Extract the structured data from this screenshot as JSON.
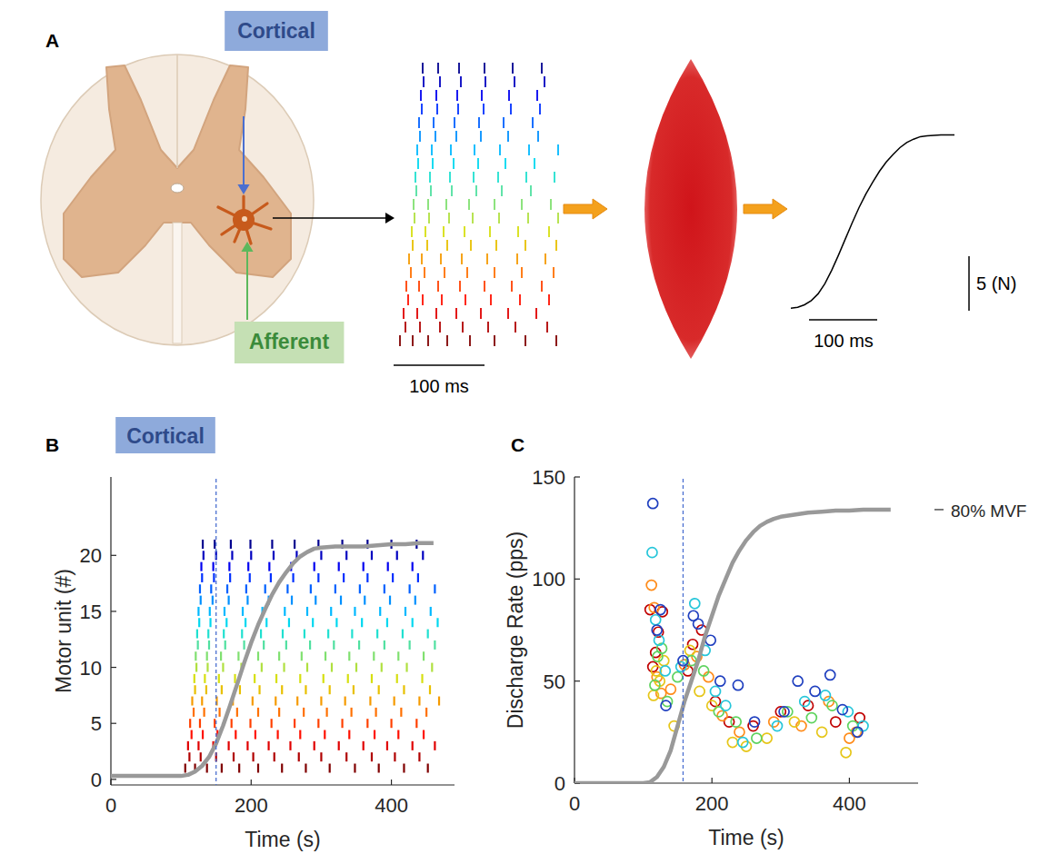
{
  "diagram": {
    "panel": "A",
    "cortical_label": "Cortical",
    "afferent_label": "Afferent",
    "raster_scale": "100 ms",
    "force_scale_y": "5 (N)",
    "force_scale_x": "100 ms"
  },
  "chart_data": [
    {
      "type": "raster",
      "panel": "B",
      "annotation": "Cortical",
      "x_label": "Time (s)",
      "y_label": "Motor unit (#)",
      "xlim": [
        0,
        490
      ],
      "ylim": [
        -0.5,
        27
      ],
      "xticks": [
        0,
        200,
        400
      ],
      "yticks": [
        0,
        5,
        10,
        15,
        20
      ],
      "vline": 150,
      "series": [
        {
          "unit": 1,
          "color": "#800000",
          "x": [
            106,
            120,
            137,
            158,
            183,
            210,
            244,
            278,
            312,
            348,
            382,
            418,
            452
          ]
        },
        {
          "unit": 2,
          "color": "#b00000",
          "x": [
            112,
            128,
            150,
            175,
            203,
            233,
            268,
            300,
            336,
            372,
            405,
            440
          ]
        },
        {
          "unit": 3,
          "color": "#e00000",
          "x": [
            110,
            125,
            146,
            168,
            195,
            225,
            256,
            290,
            325,
            360,
            394,
            430,
            462
          ]
        },
        {
          "unit": 4,
          "color": "#ff1000",
          "x": [
            115,
            131,
            152,
            178,
            206,
            238,
            270,
            305,
            340,
            376,
            410,
            446
          ]
        },
        {
          "unit": 5,
          "color": "#ff4000",
          "x": [
            113,
            127,
            148,
            172,
            199,
            229,
            262,
            296,
            330,
            366,
            400,
            436
          ]
        },
        {
          "unit": 6,
          "color": "#ff7000",
          "x": [
            118,
            133,
            155,
            180,
            210,
            240,
            275,
            308,
            343,
            378,
            414,
            450
          ]
        },
        {
          "unit": 7,
          "color": "#f59a00",
          "x": [
            116,
            130,
            151,
            174,
            202,
            235,
            266,
            300,
            334,
            370,
            404,
            440,
            468
          ]
        },
        {
          "unit": 8,
          "color": "#e8c000",
          "x": [
            120,
            136,
            158,
            184,
            212,
            244,
            278,
            312,
            346,
            382,
            418,
            455
          ]
        },
        {
          "unit": 9,
          "color": "#d6df10",
          "x": [
            119,
            134,
            154,
            177,
            205,
            236,
            270,
            303,
            338,
            372,
            408,
            444
          ]
        },
        {
          "unit": 10,
          "color": "#b0e040",
          "x": [
            122,
            138,
            160,
            186,
            215,
            247,
            280,
            315,
            350,
            386,
            422,
            458
          ]
        },
        {
          "unit": 11,
          "color": "#80e070",
          "x": [
            121,
            137,
            157,
            182,
            210,
            240,
            272,
            306,
            340,
            375,
            410,
            446
          ]
        },
        {
          "unit": 12,
          "color": "#50e0a0",
          "x": [
            124,
            140,
            163,
            190,
            218,
            250,
            284,
            318,
            354,
            390,
            426,
            462
          ]
        },
        {
          "unit": 13,
          "color": "#20e0d0",
          "x": [
            123,
            139,
            161,
            187,
            214,
            245,
            276,
            310,
            344,
            380,
            416,
            452
          ]
        },
        {
          "unit": 14,
          "color": "#00d8f0",
          "x": [
            126,
            142,
            165,
            192,
            222,
            254,
            288,
            322,
            358,
            394,
            430,
            466
          ]
        },
        {
          "unit": 15,
          "color": "#00b8ff",
          "x": [
            125,
            141,
            162,
            188,
            216,
            248,
            280,
            314,
            348,
            384,
            420,
            456
          ]
        },
        {
          "unit": 16,
          "color": "#0090ff",
          "x": [
            128,
            145,
            168,
            195,
            225,
            258,
            292,
            328,
            362,
            398,
            434
          ]
        },
        {
          "unit": 17,
          "color": "#0060ff",
          "x": [
            127,
            143,
            166,
            193,
            220,
            252,
            285,
            320,
            355,
            390,
            426,
            462
          ]
        },
        {
          "unit": 18,
          "color": "#0030ff",
          "x": [
            130,
            147,
            170,
            198,
            228,
            260,
            296,
            332,
            366,
            402,
            438
          ]
        },
        {
          "unit": 19,
          "color": "#0000f0",
          "x": [
            129,
            146,
            169,
            196,
            226,
            257,
            290,
            325,
            360,
            395,
            430
          ]
        },
        {
          "unit": 20,
          "color": "#0000c0",
          "x": [
            132,
            150,
            173,
            200,
            232,
            265,
            300,
            336,
            372,
            408,
            445
          ]
        },
        {
          "unit": 21,
          "color": "#000090",
          "x": [
            131,
            148,
            171,
            199,
            230,
            262,
            296,
            330,
            366,
            400,
            436
          ]
        },
        {
          "type": "line",
          "color": "#999999",
          "x": [
            0,
            100,
            110,
            120,
            130,
            140,
            150,
            160,
            170,
            180,
            190,
            200,
            210,
            220,
            230,
            240,
            250,
            260,
            270,
            280,
            290,
            300,
            320,
            340,
            360,
            380,
            400,
            420,
            440,
            460
          ],
          "values": [
            0.3,
            0.3,
            0.4,
            0.7,
            1.2,
            2,
            3.2,
            4.8,
            6.6,
            8.5,
            10.4,
            12.2,
            13.8,
            15.2,
            16.5,
            17.6,
            18.5,
            19.3,
            19.9,
            20.3,
            20.6,
            20.7,
            20.8,
            20.8,
            20.8,
            20.9,
            21,
            21,
            21.1,
            21.1
          ]
        }
      ]
    },
    {
      "type": "scatter",
      "panel": "C",
      "marker": "circle",
      "annotation": "80% MVF",
      "annotation_y": 134,
      "x_label": "Time (s)",
      "y_label": "Discharge Rate (pps)",
      "xlim": [
        0,
        500
      ],
      "ylim": [
        0,
        150
      ],
      "xticks": [
        0,
        200,
        400
      ],
      "yticks": [
        0,
        50,
        100,
        150
      ],
      "vline": 158,
      "series": [
        {
          "color": "#c00000",
          "x": [
            110,
            114,
            118,
            122,
            128,
            165,
            172,
            185,
            205,
            225,
            260,
            300,
            340,
            380,
            415
          ],
          "values": [
            85,
            57,
            64,
            74,
            84,
            55,
            68,
            75,
            40,
            30,
            28,
            35,
            38,
            30,
            32
          ]
        },
        {
          "color": "#ff8c1a",
          "x": [
            112,
            116,
            120,
            126,
            140,
            160,
            178,
            195,
            215,
            240,
            290,
            330,
            370,
            400,
            410
          ],
          "values": [
            97,
            86,
            52,
            44,
            46,
            58,
            62,
            52,
            33,
            25,
            30,
            28,
            40,
            22,
            25
          ]
        },
        {
          "color": "#e6c619",
          "x": [
            115,
            119,
            124,
            130,
            145,
            168,
            182,
            200,
            230,
            250,
            280,
            320,
            360,
            395
          ],
          "values": [
            43,
            55,
            50,
            60,
            28,
            65,
            45,
            38,
            20,
            18,
            22,
            30,
            25,
            15
          ]
        },
        {
          "color": "#5fd35f",
          "x": [
            117,
            121,
            127,
            135,
            150,
            170,
            188,
            210,
            235,
            265,
            310,
            345,
            375,
            405
          ],
          "values": [
            48,
            62,
            66,
            40,
            52,
            60,
            55,
            35,
            30,
            22,
            35,
            32,
            38,
            28
          ]
        },
        {
          "color": "#26c6da",
          "x": [
            113,
            118,
            123,
            132,
            155,
            175,
            190,
            205,
            220,
            245,
            295,
            335,
            365,
            398,
            420
          ],
          "values": [
            113,
            80,
            70,
            55,
            57,
            88,
            65,
            45,
            38,
            20,
            28,
            40,
            43,
            35,
            28
          ]
        },
        {
          "color": "#1f3fbf",
          "x": [
            114,
            120,
            125,
            133,
            158,
            173,
            180,
            198,
            212,
            238,
            262,
            305,
            325,
            350,
            372,
            390,
            412
          ],
          "values": [
            137,
            75,
            85,
            38,
            60,
            82,
            78,
            70,
            50,
            48,
            30,
            35,
            50,
            45,
            53,
            36,
            25
          ]
        },
        {
          "type": "line",
          "color": "#999999",
          "x": [
            0,
            100,
            110,
            120,
            130,
            140,
            150,
            160,
            170,
            180,
            190,
            200,
            210,
            220,
            230,
            240,
            250,
            260,
            270,
            280,
            290,
            300,
            320,
            340,
            360,
            380,
            400,
            420,
            440,
            460
          ],
          "values": [
            0,
            0,
            0.5,
            3,
            8,
            16,
            28,
            40,
            50,
            60,
            72,
            82,
            92,
            100,
            108,
            114,
            119,
            123,
            126,
            128,
            129.5,
            130.5,
            131.5,
            132.5,
            133,
            133.5,
            133.5,
            134,
            134,
            134
          ]
        }
      ]
    }
  ]
}
